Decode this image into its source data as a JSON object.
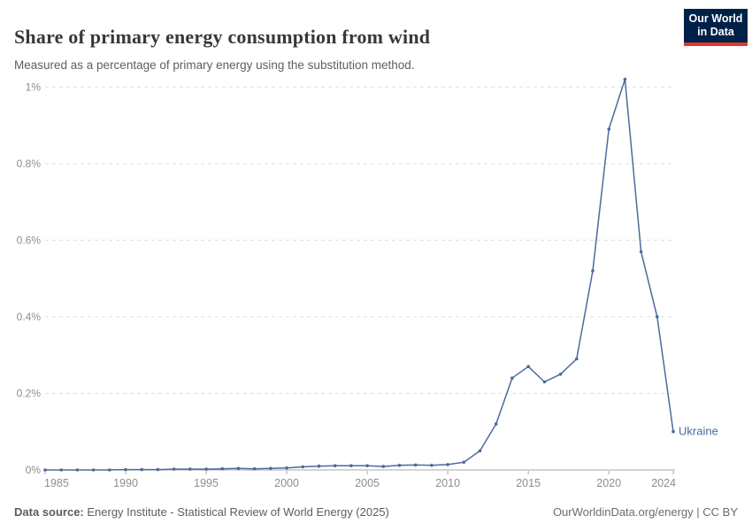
{
  "header": {
    "title": "Share of primary energy consumption from wind",
    "subtitle": "Measured as a percentage of primary energy using the substitution method.",
    "logo_line1": "Our World",
    "logo_line2": "in Data"
  },
  "footer": {
    "source_label": "Data source:",
    "source_text": " Energy Institute - Statistical Review of World Energy (2025)",
    "credit": "OurWorldinData.org/energy | CC BY"
  },
  "colors": {
    "line": "#4C6A9C",
    "entity_label": "#4C6A9C",
    "grid": "#dddddd",
    "axis": "#a8a8a8",
    "tick_label": "#8e8e8e",
    "logo_bg": "#002147",
    "logo_red": "#e5362c"
  },
  "chart_data": {
    "type": "line",
    "title": "Share of primary energy consumption from wind",
    "entity": "Ukraine",
    "xlabel": "",
    "ylabel": "",
    "ylim": [
      0,
      1.0
    ],
    "grid": "horizontal-dashed",
    "legend_position": "end-of-line-label",
    "yticks": {
      "values": [
        0,
        0.2,
        0.4,
        0.6,
        0.8,
        1.0
      ],
      "labels": [
        "0%",
        "0.2%",
        "0.4%",
        "0.6%",
        "0.8%",
        "1%"
      ]
    },
    "xticks": [
      1985,
      1990,
      1995,
      2000,
      2005,
      2010,
      2015,
      2020,
      2024
    ],
    "x": [
      1985,
      1986,
      1987,
      1988,
      1989,
      1990,
      1991,
      1992,
      1993,
      1994,
      1995,
      1996,
      1997,
      1998,
      1999,
      2000,
      2001,
      2002,
      2003,
      2004,
      2005,
      2006,
      2007,
      2008,
      2009,
      2010,
      2011,
      2012,
      2013,
      2014,
      2015,
      2016,
      2017,
      2018,
      2019,
      2020,
      2021,
      2022,
      2023,
      2024
    ],
    "values": [
      0,
      0,
      0,
      0,
      0,
      0.001,
      0.001,
      0.001,
      0.002,
      0.002,
      0.002,
      0.003,
      0.004,
      0.003,
      0.004,
      0.005,
      0.008,
      0.01,
      0.011,
      0.011,
      0.011,
      0.009,
      0.012,
      0.013,
      0.012,
      0.014,
      0.02,
      0.05,
      0.12,
      0.24,
      0.27,
      0.23,
      0.25,
      0.29,
      0.52,
      0.89,
      1.02,
      0.57,
      0.4,
      0.1
    ]
  }
}
